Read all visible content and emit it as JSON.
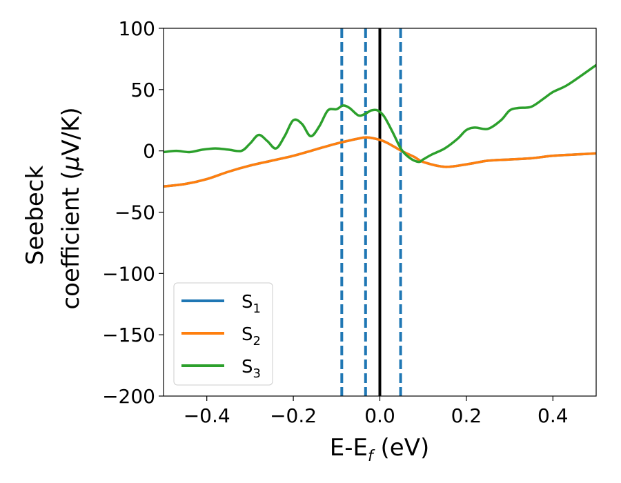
{
  "chart_data": {
    "type": "line",
    "title": "",
    "xlabel_main": "E-E",
    "xlabel_sub": "f",
    "xlabel_unit": " (eV)",
    "ylabel_line1": "Seebeck",
    "ylabel_line2_prefix": "coefficient  (",
    "ylabel_mu": "μ",
    "ylabel_line2_suffix": "V/K)",
    "xlim": [
      -0.5,
      0.5
    ],
    "ylim": [
      -200,
      100
    ],
    "xticks": [
      -0.4,
      -0.2,
      0.0,
      0.2,
      0.4
    ],
    "xtick_labels": [
      "−0.4",
      "−0.2",
      "0.0",
      "0.2",
      "0.4"
    ],
    "yticks": [
      100,
      50,
      0,
      -50,
      -100,
      -150,
      -200
    ],
    "ytick_labels": [
      "100",
      "50",
      "0",
      "−50",
      "−100",
      "−150",
      "−200"
    ],
    "grid": false,
    "legend_position": "lower-left",
    "vlines": [
      {
        "x": -0.088,
        "style": "dashed",
        "color": "#1f77b4"
      },
      {
        "x": -0.033,
        "style": "dashed",
        "color": "#1f77b4"
      },
      {
        "x": 0.0,
        "style": "solid",
        "color": "#000000"
      },
      {
        "x": 0.048,
        "style": "dashed",
        "color": "#1f77b4"
      }
    ],
    "series": [
      {
        "name": "S",
        "sub": "1",
        "color": "#1f77b4",
        "x": [
          -0.5,
          -0.45,
          -0.4,
          -0.35,
          -0.3,
          -0.25,
          -0.2,
          -0.15,
          -0.1,
          -0.05,
          -0.03,
          0.0,
          0.02,
          0.05,
          0.08,
          0.1,
          0.15,
          0.2,
          0.25,
          0.3,
          0.35,
          0.4,
          0.45,
          0.5
        ],
        "y": [
          -29,
          -27,
          -23,
          -17,
          -12,
          -8,
          -4,
          1,
          6,
          10,
          11,
          9,
          6,
          0,
          -5,
          -9,
          -13,
          -11,
          -8,
          -7,
          -6,
          -4,
          -3,
          -2
        ]
      },
      {
        "name": "S",
        "sub": "2",
        "color": "#ff7f0e",
        "x": [
          -0.5,
          -0.45,
          -0.4,
          -0.35,
          -0.3,
          -0.25,
          -0.2,
          -0.15,
          -0.1,
          -0.05,
          -0.03,
          0.0,
          0.02,
          0.05,
          0.08,
          0.1,
          0.15,
          0.2,
          0.25,
          0.3,
          0.35,
          0.4,
          0.45,
          0.5
        ],
        "y": [
          -29,
          -27,
          -23,
          -17,
          -12,
          -8,
          -4,
          1,
          6,
          10,
          11,
          9,
          6,
          0,
          -5,
          -9,
          -13,
          -11,
          -8,
          -7,
          -6,
          -4,
          -3,
          -2
        ]
      },
      {
        "name": "S",
        "sub": "3",
        "color": "#2ca02c",
        "x": [
          -0.5,
          -0.47,
          -0.44,
          -0.41,
          -0.38,
          -0.35,
          -0.32,
          -0.3,
          -0.28,
          -0.26,
          -0.24,
          -0.22,
          -0.2,
          -0.18,
          -0.16,
          -0.14,
          -0.12,
          -0.1,
          -0.085,
          -0.07,
          -0.05,
          -0.035,
          -0.02,
          -0.005,
          0.01,
          0.03,
          0.05,
          0.07,
          0.09,
          0.1,
          0.12,
          0.15,
          0.18,
          0.2,
          0.22,
          0.25,
          0.28,
          0.3,
          0.32,
          0.35,
          0.38,
          0.4,
          0.43,
          0.46,
          0.5
        ],
        "y": [
          -1,
          0,
          -1,
          1,
          2,
          1,
          0,
          6,
          13,
          8,
          2,
          12,
          25,
          22,
          12,
          20,
          33,
          34,
          37,
          35,
          29,
          30,
          33,
          33,
          28,
          15,
          1,
          -6,
          -9,
          -7,
          -3,
          2,
          10,
          17,
          19,
          18,
          25,
          33,
          35,
          36,
          43,
          48,
          53,
          60,
          70
        ]
      }
    ]
  }
}
